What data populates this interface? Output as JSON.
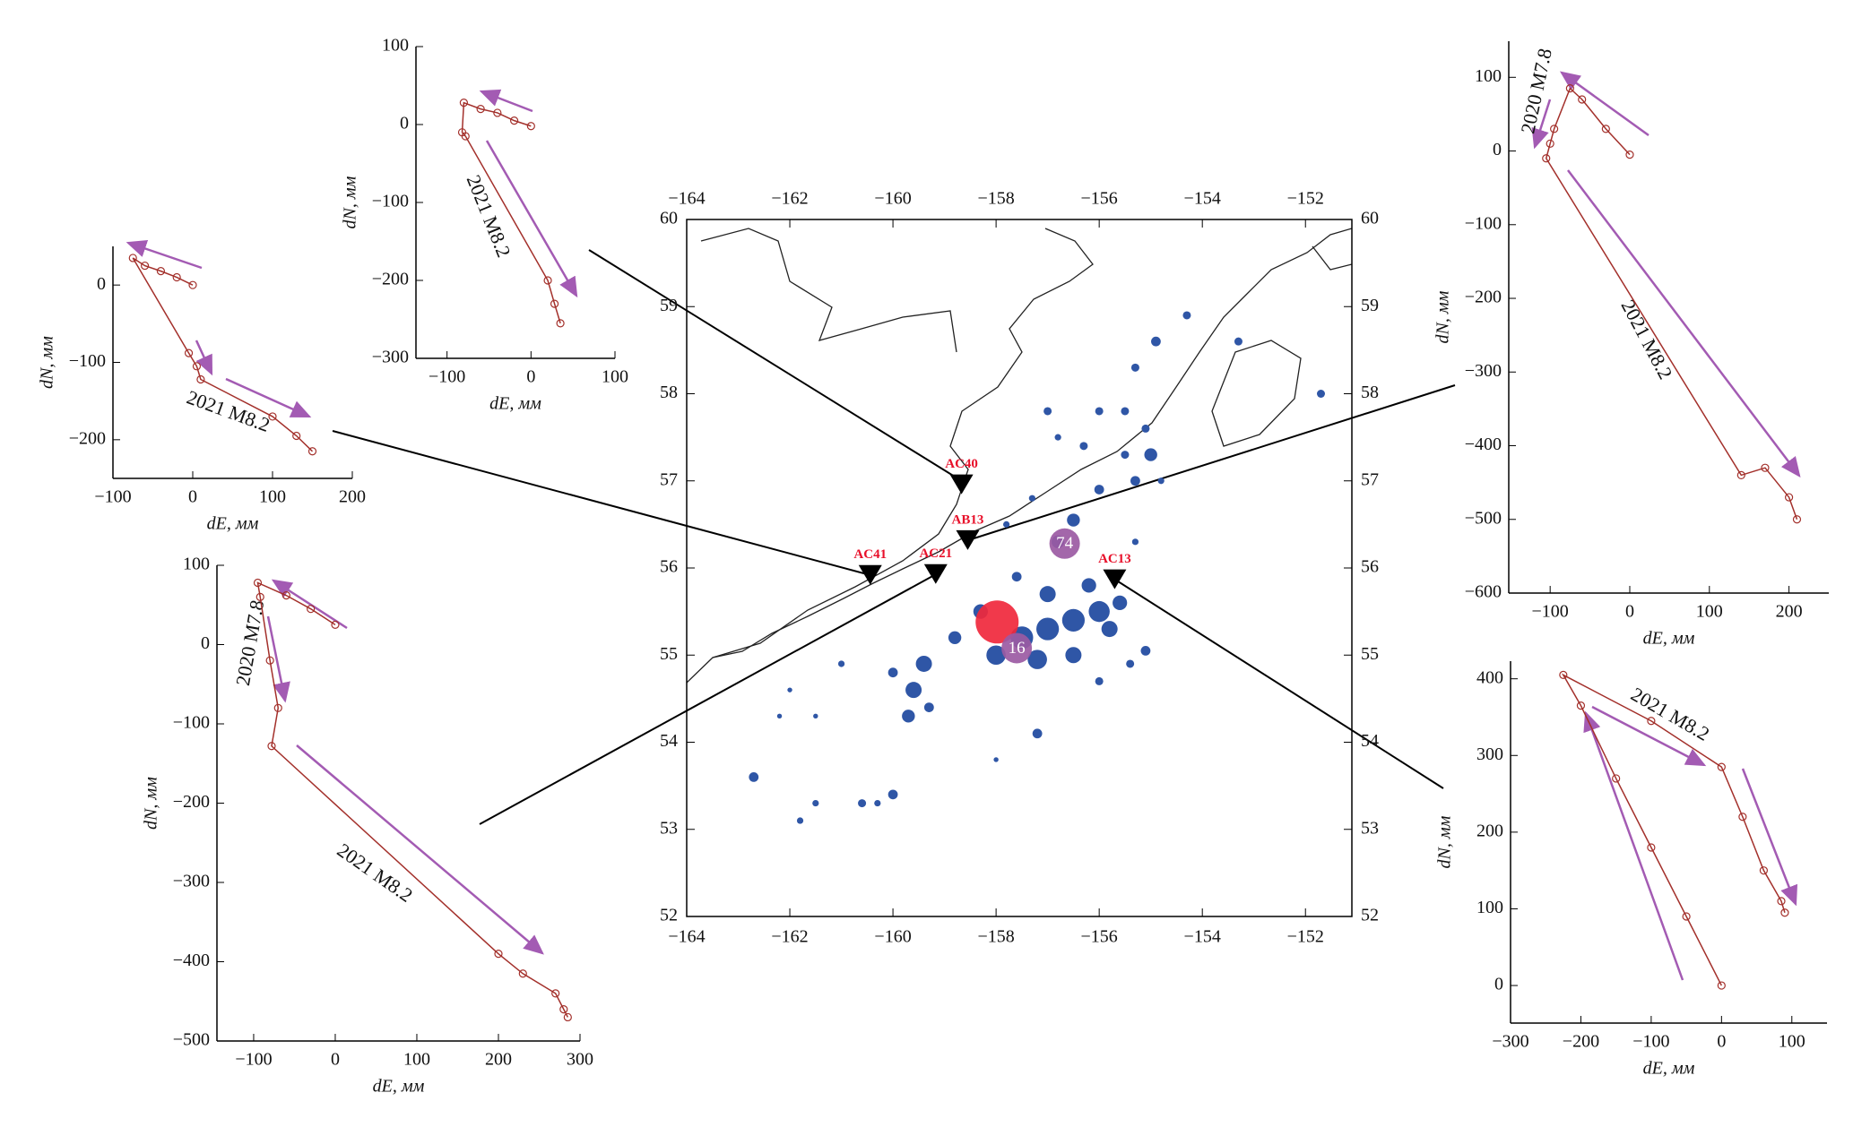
{
  "chart_data": [
    {
      "type": "map",
      "xlim": [
        -164,
        -151.1
      ],
      "ylim": [
        52,
        60
      ],
      "xticks": [
        {
          "value": -164,
          "label": "−164"
        },
        {
          "value": -162,
          "label": "−162"
        },
        {
          "value": -160,
          "label": "−160"
        },
        {
          "value": -158,
          "label": "−158"
        },
        {
          "value": -156,
          "label": "−156"
        },
        {
          "value": -154,
          "label": "−154"
        },
        {
          "value": -152,
          "label": "−152"
        }
      ],
      "yticks": [
        52,
        53,
        54,
        55,
        56,
        57,
        58,
        59,
        60
      ],
      "stations": {
        "names": [
          "AC40",
          "AB13",
          "AC41",
          "AC21",
          "AC13"
        ],
        "lon": [
          -158.67,
          -158.55,
          -160.44,
          -159.17,
          -155.7
        ],
        "lat": [
          56.96,
          56.32,
          55.92,
          55.93,
          55.87
        ],
        "color": "#e8102a"
      },
      "events": {
        "labels": [
          null,
          "74",
          "16"
        ],
        "lon": [
          -157.98,
          -156.67,
          -157.6
        ],
        "lat": [
          55.38,
          56.28,
          55.08
        ],
        "colors": [
          "#f0283c",
          "#9b5aa3",
          "#9b5aa3"
        ],
        "size": [
          24,
          17,
          17
        ]
      },
      "quakes": {
        "color": "#2f56a6",
        "lon": [
          -157.5,
          -157.0,
          -156.5,
          -156.0,
          -158.0,
          -157.2,
          -156.5,
          -155.8,
          -155.6,
          -156.2,
          -157.0,
          -158.3,
          -158.8,
          -159.4,
          -159.6,
          -159.7,
          -160.0,
          -159.3,
          -156.8,
          -156.5,
          -156.0,
          -155.3,
          -155.5,
          -155.0,
          -154.9,
          -154.3,
          -155.3,
          -156.0,
          -155.5,
          -155.1,
          -156.3,
          -157.3,
          -157.8,
          -157.6,
          -151.7,
          -153.3,
          -162.7,
          -160.6,
          -160.0,
          -160.3,
          -161.5,
          -161.8,
          -162.2,
          -161.5,
          -162.0,
          -161.0,
          -158.0,
          -157.2,
          -156.0,
          -155.4,
          -155.1,
          -155.3,
          -154.8,
          -157.0,
          -156.8
        ],
        "lat": [
          55.2,
          55.3,
          55.4,
          55.5,
          55.0,
          54.95,
          55.0,
          55.3,
          55.6,
          55.8,
          55.7,
          55.5,
          55.2,
          54.9,
          54.6,
          54.3,
          54.8,
          54.4,
          56.3,
          56.55,
          56.9,
          57.0,
          57.3,
          57.3,
          58.6,
          58.9,
          58.3,
          57.8,
          57.8,
          57.6,
          57.4,
          56.8,
          56.5,
          55.9,
          58.0,
          58.6,
          53.6,
          53.3,
          53.4,
          53.3,
          53.3,
          53.1,
          54.3,
          54.3,
          54.6,
          54.9,
          53.8,
          54.1,
          54.7,
          54.9,
          55.05,
          56.3,
          57.0,
          57.8,
          57.5
        ],
        "size": [
          14,
          14,
          14,
          13,
          12,
          12,
          10,
          10,
          9,
          9,
          10,
          9,
          8,
          10,
          10,
          8,
          6,
          6,
          8,
          8,
          6,
          6,
          5,
          8,
          6,
          5,
          5,
          5,
          5,
          5,
          5,
          4,
          4,
          6,
          5,
          5,
          6,
          5,
          6,
          4,
          4,
          4,
          3,
          3,
          3,
          4,
          3,
          6,
          5,
          5,
          6,
          4,
          4,
          5,
          4
        ]
      }
    },
    {
      "type": "trajectory",
      "xlabel": "dE, мм",
      "ylabel": "dN, мм",
      "color": "#a3302b",
      "xlim": [
        -137,
        100
      ],
      "ylim": [
        -300,
        100
      ],
      "xticks": [
        {
          "value": -100,
          "label": "−100"
        },
        0,
        100
      ],
      "yticks": [
        {
          "value": -300,
          "label": "−300"
        },
        {
          "value": -200,
          "label": "−200"
        },
        {
          "value": -100,
          "label": "−100"
        },
        0,
        100
      ],
      "x": [
        0,
        -20,
        -40,
        -60,
        -80,
        -82,
        -78,
        20,
        28,
        35
      ],
      "y": [
        -2,
        5,
        15,
        20,
        28,
        -10,
        -15,
        -200,
        -230,
        -255
      ],
      "annotations": [
        "2021 M8.2"
      ]
    },
    {
      "type": "trajectory",
      "xlabel": "dE, мм",
      "ylabel": "dN, мм",
      "color": "#a3302b",
      "xlim": [
        -100,
        200
      ],
      "ylim": [
        -250,
        50
      ],
      "xticks": [
        {
          "value": -100,
          "label": "−100"
        },
        0,
        100,
        200
      ],
      "yticks": [
        {
          "value": -200,
          "label": "−200"
        },
        {
          "value": -100,
          "label": "−100"
        },
        0
      ],
      "x": [
        0,
        -20,
        -40,
        -60,
        -75,
        -5,
        5,
        10,
        100,
        130,
        150
      ],
      "y": [
        0,
        10,
        18,
        25,
        35,
        -88,
        -105,
        -122,
        -170,
        -195,
        -215
      ],
      "annotations": [
        "2021 M8.2"
      ]
    },
    {
      "type": "trajectory",
      "xlabel": "dE, мм",
      "ylabel": "dN, мм",
      "color": "#a3302b",
      "xlim": [
        -145,
        300
      ],
      "ylim": [
        -500,
        100
      ],
      "xticks": [
        {
          "value": -100,
          "label": "−100"
        },
        0,
        100,
        200,
        300
      ],
      "yticks": [
        {
          "value": -500,
          "label": "−500"
        },
        {
          "value": -400,
          "label": "−400"
        },
        {
          "value": -300,
          "label": "−300"
        },
        {
          "value": -200,
          "label": "−200"
        },
        {
          "value": -100,
          "label": "−100"
        },
        0,
        100
      ],
      "x": [
        0,
        -30,
        -60,
        -95,
        -92,
        -80,
        -70,
        -78,
        200,
        230,
        270,
        280,
        285
      ],
      "y": [
        25,
        45,
        62,
        78,
        60,
        -20,
        -80,
        -128,
        -390,
        -415,
        -440,
        -460,
        -470
      ],
      "annotations": [
        "2020 M7.8",
        "2021 M8.2"
      ]
    },
    {
      "type": "trajectory",
      "xlabel": "dE, мм",
      "ylabel": "dN, мм",
      "color": "#a3302b",
      "xlim": [
        -152,
        250
      ],
      "ylim": [
        -600,
        149
      ],
      "xticks": [
        {
          "value": -100,
          "label": "−100"
        },
        0,
        100,
        200
      ],
      "yticks": [
        {
          "value": -600,
          "label": "−600"
        },
        {
          "value": -500,
          "label": "−500"
        },
        {
          "value": -400,
          "label": "−400"
        },
        {
          "value": -300,
          "label": "−300"
        },
        {
          "value": -200,
          "label": "−200"
        },
        {
          "value": -100,
          "label": "−100"
        },
        0,
        100
      ],
      "x": [
        0,
        -30,
        -60,
        -75,
        -95,
        -100,
        -105,
        140,
        170,
        200,
        210
      ],
      "y": [
        -5,
        30,
        70,
        85,
        30,
        10,
        -10,
        -440,
        -430,
        -470,
        -500
      ],
      "annotations": [
        "2020 M7.8",
        "2021 M8.2"
      ]
    },
    {
      "type": "trajectory",
      "xlabel": "dE, мм",
      "ylabel": "dN, мм",
      "color": "#a3302b",
      "xlim": [
        -300,
        150
      ],
      "ylim": [
        -49,
        423
      ],
      "xticks": [
        {
          "value": -300,
          "label": "−300"
        },
        {
          "value": -200,
          "label": "−200"
        },
        {
          "value": -100,
          "label": "−100"
        },
        0,
        100
      ],
      "yticks": [
        0,
        100,
        200,
        300,
        400
      ],
      "x": [
        0,
        -50,
        -100,
        -150,
        -200,
        -225,
        -100,
        0,
        30,
        60,
        85,
        90
      ],
      "y": [
        0,
        90,
        180,
        270,
        365,
        405,
        345,
        285,
        220,
        150,
        110,
        95
      ],
      "annotations": [
        "2021 M8.2"
      ]
    }
  ]
}
